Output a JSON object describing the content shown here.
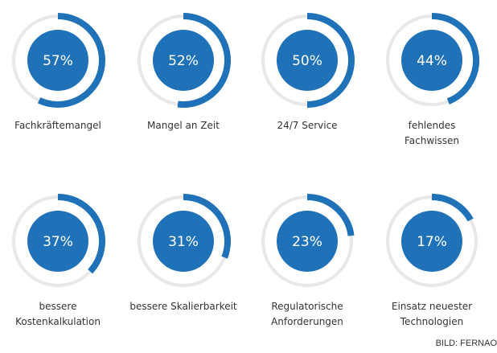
{
  "chart_data": {
    "type": "ring",
    "categories": [
      "Fachkräftemangel",
      "Mangel an Zeit",
      "24/7 Service",
      "fehlendes\nFachwissen",
      "bessere\nKostenkalkulation",
      "bessere Skalierbarkeit",
      "Regulatorische\nAnforderungen",
      "Einsatz neuester\nTechnologien"
    ],
    "values": [
      57,
      52,
      50,
      44,
      37,
      31,
      23,
      17
    ],
    "value_labels": [
      "57%",
      "52%",
      "50%",
      "44%",
      "37%",
      "31%",
      "23%",
      "17%"
    ],
    "ylim": [
      0,
      100
    ],
    "color": "#1f72b8",
    "credit": "BILD: FERNAO"
  }
}
